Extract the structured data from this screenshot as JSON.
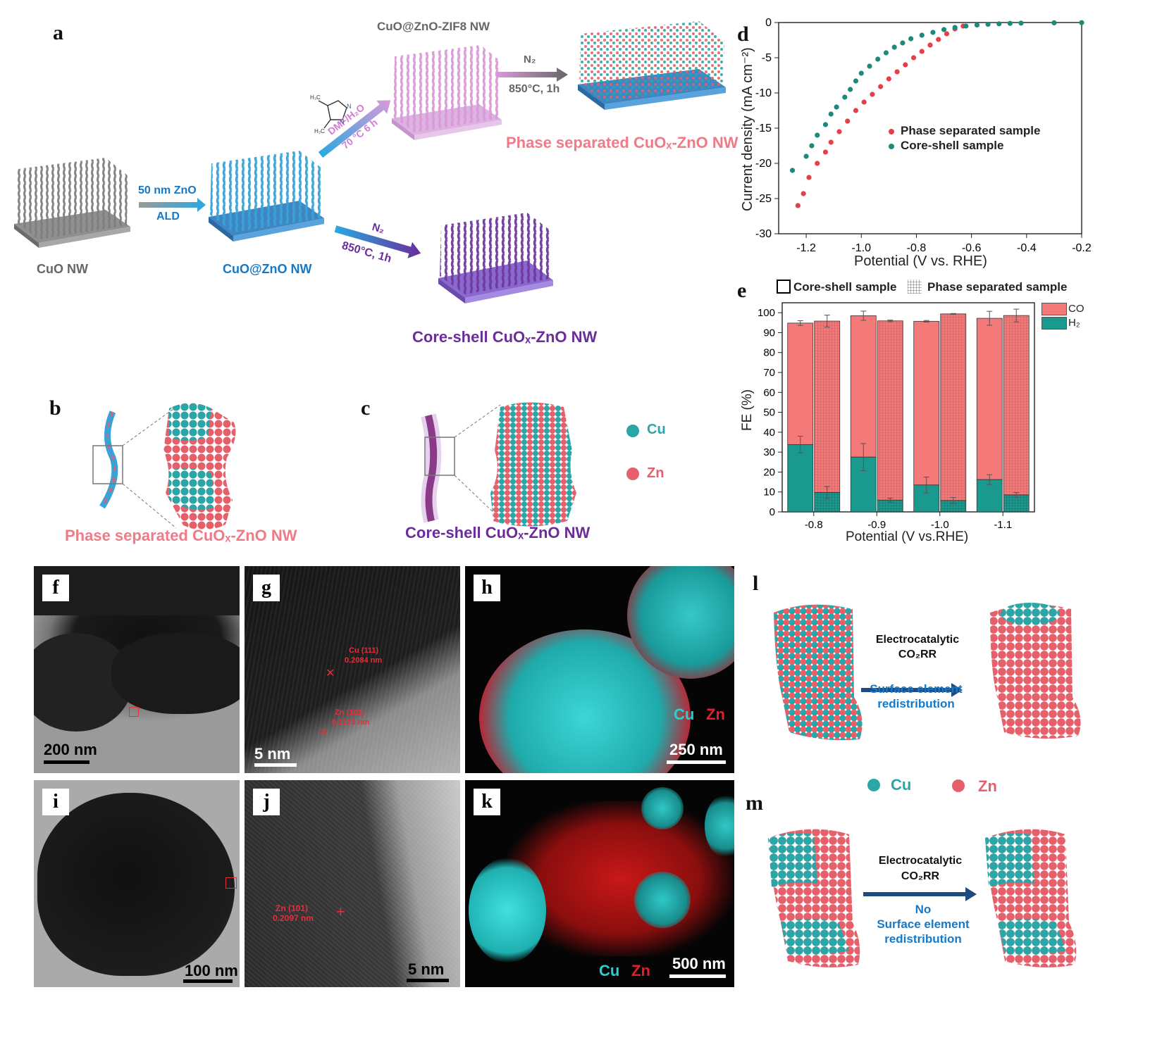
{
  "panel_labels": {
    "a": "a",
    "b": "b",
    "c": "c",
    "d": "d",
    "e": "e",
    "f": "f",
    "g": "g",
    "h": "h",
    "i": "i",
    "j": "j",
    "k": "k",
    "l": "l",
    "m": "m"
  },
  "schematic": {
    "cuo_nw": "CuO NW",
    "step1_top": "50 nm ZnO",
    "step1_bottom": "ALD",
    "cuo_zno_nw": "CuO@ZnO NW",
    "zif_title": "CuO@ZnO-ZIF8  NW",
    "zif_cond1": "DMF/H₂O",
    "zif_cond2": "70 °C 6 h",
    "n2_top": "N₂",
    "n2_top_cond": "850°C, 1h",
    "phase_product": "Phase separated CuOₓ-ZnO NW",
    "n2_bottom": "N₂",
    "n2_bottom_cond": "850°C, 1h",
    "coreshell_product": "Core-shell CuOₓ-ZnO NW",
    "mol_h3c1": "H₃C",
    "mol_h3c2": "H₃C",
    "mol_n1": "N",
    "mol_n2": "N"
  },
  "models": {
    "b_caption": "Phase separated CuOₓ-ZnO NW",
    "c_caption": "Core-shell CuOₓ-ZnO NW",
    "legend_cu": "Cu",
    "legend_zn": "Zn"
  },
  "tem": {
    "f_scale": "200 nm",
    "g_scale": "5 nm",
    "g_ann1": "Cu (111)",
    "g_ann1b": "0.2084 nm",
    "g_ann2": "Zn (101)",
    "g_ann2b": "0.2103 nm",
    "h_cu": "Cu",
    "h_zn": "Zn",
    "h_scale": "250 nm",
    "i_scale": "100 nm",
    "j_scale": "5 nm",
    "j_ann1": "Zn (101)",
    "j_ann1b": "0.2097 nm",
    "k_cu": "Cu",
    "k_zn": "Zn",
    "k_scale": "500 nm"
  },
  "lm": {
    "l_text1": "Electrocatalytic",
    "l_text2": "CO₂RR",
    "l_text3": "Surface element",
    "l_text4": "redistribution",
    "legend_cu": "Cu",
    "legend_zn": "Zn",
    "m_text1": "Electrocatalytic",
    "m_text2": "CO₂RR",
    "m_text3": "No",
    "m_text4": "Surface element",
    "m_text5": "redistribution"
  },
  "colors": {
    "cu": "#2aa6a6",
    "zn": "#e5606a",
    "phase": "#e5404a",
    "coreshell": "#1a8a7a",
    "co": "#f47a7a",
    "h2": "#1a9a8e"
  },
  "chart_data": [
    {
      "type": "scatter",
      "panel": "d",
      "xlabel": "Potential (V vs. RHE)",
      "ylabel": "Current density (mA cm⁻²)",
      "xlim": [
        -1.3,
        -0.2
      ],
      "ylim": [
        -30,
        0
      ],
      "xticks": [
        "-1.2",
        "-1.0",
        "-0.8",
        "-0.6",
        "-0.4",
        "-0.2"
      ],
      "xtick_values": [
        -1.2,
        -1.0,
        -0.8,
        -0.6,
        -0.4,
        -0.2
      ],
      "yticks": [
        "0",
        "-5",
        "-10",
        "-15",
        "-20",
        "-25",
        "-30"
      ],
      "ytick_values": [
        0,
        -5,
        -10,
        -15,
        -20,
        -25,
        -30
      ],
      "series": [
        {
          "name": "Phase separated sample",
          "color": "#e5404a",
          "x": [
            -1.23,
            -1.21,
            -1.19,
            -1.16,
            -1.13,
            -1.11,
            -1.08,
            -1.05,
            -1.02,
            -0.99,
            -0.96,
            -0.93,
            -0.9,
            -0.87,
            -0.84,
            -0.81,
            -0.78,
            -0.75,
            -0.72,
            -0.69,
            -0.66,
            -0.63
          ],
          "y": [
            -26,
            -24.3,
            -22,
            -20,
            -18.4,
            -17,
            -15.5,
            -14,
            -12.5,
            -11.3,
            -10.2,
            -9.1,
            -8,
            -7,
            -6,
            -5,
            -4.1,
            -3.2,
            -2.4,
            -1.6,
            -0.9,
            -0.5
          ]
        },
        {
          "name": "Core-shell sample",
          "color": "#1a8a7a",
          "x": [
            -1.25,
            -1.2,
            -1.18,
            -1.16,
            -1.13,
            -1.11,
            -1.09,
            -1.06,
            -1.04,
            -1.02,
            -1.0,
            -0.97,
            -0.94,
            -0.91,
            -0.88,
            -0.85,
            -0.82,
            -0.78,
            -0.74,
            -0.7,
            -0.66,
            -0.62,
            -0.58,
            -0.54,
            -0.5,
            -0.46,
            -0.42,
            -0.3,
            -0.2
          ],
          "y": [
            -21,
            -19,
            -17.5,
            -16,
            -14.5,
            -13,
            -12,
            -10.6,
            -9.5,
            -8.3,
            -7.2,
            -6.2,
            -5.2,
            -4.3,
            -3.5,
            -2.9,
            -2.3,
            -1.8,
            -1.4,
            -1.0,
            -0.7,
            -0.5,
            -0.35,
            -0.25,
            -0.18,
            -0.12,
            -0.08,
            -0.04,
            -0.02
          ]
        }
      ]
    },
    {
      "type": "bar",
      "panel": "e",
      "xlabel": "Potential (V vs.RHE)",
      "ylabel": "FE (%)",
      "ylim": [
        0,
        105
      ],
      "categories": [
        "-0.8",
        "-0.9",
        "-1.0",
        "-1.1"
      ],
      "yticks": [
        "0",
        "10",
        "20",
        "30",
        "40",
        "50",
        "60",
        "70",
        "80",
        "90",
        "100"
      ],
      "legend_top": [
        "Core-shell sample",
        "Phase separated sample"
      ],
      "legend_right": [
        "CO",
        "H₂"
      ],
      "series": [
        {
          "name": "Core-shell sample",
          "total": [
            94.8,
            98.5,
            95.7,
            97.2
          ],
          "h2": [
            33.8,
            27.5,
            13.5,
            16.2
          ],
          "total_err": [
            1.2,
            2.3,
            0.4,
            3.5
          ],
          "h2_err": [
            4.2,
            6.8,
            4.0,
            2.5
          ]
        },
        {
          "name": "Phase separated sample",
          "total": [
            95.8,
            95.9,
            99.4,
            98.6
          ],
          "h2": [
            9.7,
            5.9,
            5.7,
            8.5
          ],
          "total_err": [
            3.0,
            0.4,
            0.2,
            3.2
          ],
          "h2_err": [
            3.0,
            1.0,
            1.5,
            1.2
          ]
        }
      ]
    }
  ]
}
